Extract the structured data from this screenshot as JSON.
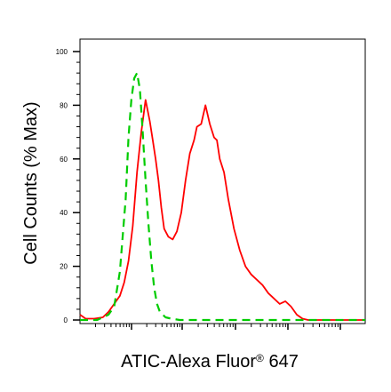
{
  "chart_data": {
    "type": "line",
    "xlabel": "ATIC-Alexa Fluor",
    "xlabel_superscript": "®",
    "xlabel_suffix": " 647",
    "ylabel": "Cell Counts (% Max)",
    "ylim": [
      0,
      100
    ],
    "xlim": [
      0,
      100
    ],
    "y_ticks": [
      "0",
      "20",
      "40",
      "60",
      "80",
      "100"
    ],
    "grid": false,
    "legend": "none",
    "series": [
      {
        "color": "#ff0000",
        "style": "solid",
        "x": [
          0,
          2,
          5,
          8,
          10,
          12,
          14,
          15.5,
          17,
          18.5,
          20,
          21.5,
          23,
          24.5,
          25.5,
          26.5,
          27.5,
          28.5,
          29.5,
          31,
          32.5,
          34,
          35.5,
          37,
          38.5,
          40,
          41,
          42.5,
          44,
          45.5,
          47,
          48,
          49,
          50.5,
          52,
          54,
          56,
          58,
          60,
          62,
          64,
          66,
          68,
          70,
          72,
          74,
          76,
          78,
          80,
          85,
          90,
          95,
          100
        ],
        "y": [
          2,
          0.5,
          0.5,
          1,
          3,
          6,
          9,
          14,
          22,
          35,
          55,
          70,
          82,
          74,
          67,
          60,
          52,
          42,
          34,
          31,
          30,
          33,
          40,
          52,
          62,
          67,
          72,
          73,
          80,
          73,
          68,
          67,
          60,
          55,
          45,
          34,
          26,
          20,
          17,
          15,
          13,
          10,
          8,
          6,
          7,
          5,
          2,
          0.5,
          0,
          0,
          0,
          0,
          0
        ]
      },
      {
        "color": "#00cc00",
        "style": "dashed",
        "x": [
          0,
          3,
          6,
          8,
          10,
          12,
          14,
          16,
          17,
          18,
          19,
          20,
          21,
          22,
          23,
          24,
          25,
          26,
          27,
          28,
          30,
          32,
          35,
          40,
          50,
          60,
          70,
          80,
          90,
          100
        ],
        "y": [
          0,
          0,
          0,
          1,
          2,
          5,
          18,
          45,
          68,
          82,
          90,
          92,
          86,
          70,
          52,
          36,
          22,
          12,
          6,
          3,
          1,
          0.5,
          0,
          0,
          0,
          0,
          0,
          0,
          0,
          0
        ]
      }
    ]
  }
}
